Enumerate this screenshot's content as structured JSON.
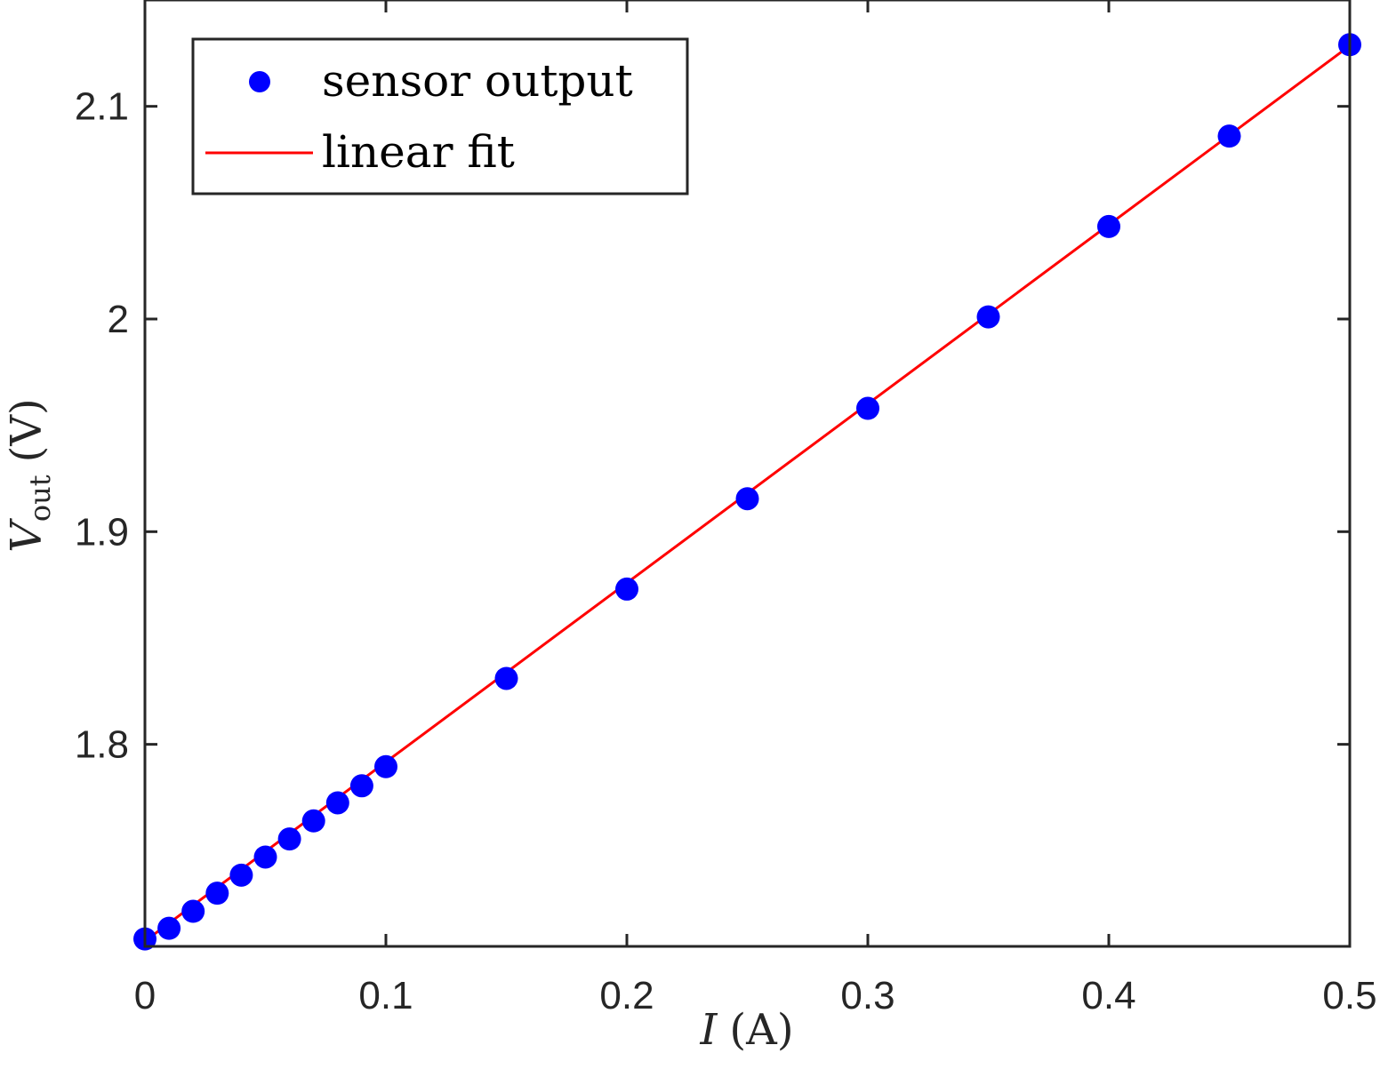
{
  "chart_data": {
    "type": "scatter",
    "title": "",
    "xlabel": {
      "var": "I",
      "unit": "(A)"
    },
    "ylabel": {
      "var": "V",
      "sub": "out",
      "unit": "(V)"
    },
    "xlim": [
      0,
      0.5
    ],
    "ylim": [
      1.705,
      2.15
    ],
    "xticks": [
      0,
      0.1,
      0.2,
      0.3,
      0.4,
      0.5
    ],
    "xtick_labels": [
      "0",
      "0.1",
      "0.2",
      "0.3",
      "0.4",
      "0.5"
    ],
    "yticks": [
      1.8,
      1.9,
      2.0,
      2.1
    ],
    "ytick_labels": [
      "1.8",
      "1.9",
      "2",
      "2.1"
    ],
    "grid": false,
    "legend": {
      "position": "top-left",
      "entries": [
        "sensor output",
        "linear fit"
      ]
    },
    "series": [
      {
        "name": "sensor output",
        "kind": "markers",
        "color": "#0000ff",
        "x": [
          0,
          0.01,
          0.02,
          0.03,
          0.04,
          0.05,
          0.06,
          0.07,
          0.08,
          0.09,
          0.1,
          0.15,
          0.2,
          0.25,
          0.3,
          0.35,
          0.4,
          0.45,
          0.5
        ],
        "y": [
          1.7085,
          1.7135,
          1.7215,
          1.73,
          1.7385,
          1.747,
          1.7555,
          1.764,
          1.7725,
          1.7805,
          1.7895,
          1.831,
          1.873,
          1.9155,
          1.958,
          2.001,
          2.0435,
          2.086,
          2.129
        ]
      },
      {
        "name": "linear fit",
        "kind": "line",
        "color": "#ff0000",
        "x": [
          0,
          0.5
        ],
        "y": [
          1.7075,
          2.1285
        ]
      }
    ]
  }
}
